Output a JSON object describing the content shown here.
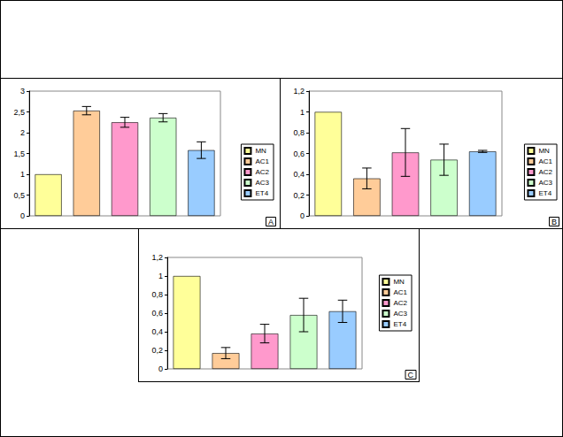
{
  "chart_data": [
    {
      "type": "bar",
      "annotation": "A",
      "categories": [
        "MN",
        "AC1",
        "AC2",
        "AC3",
        "ET4"
      ],
      "values": [
        1,
        2.53,
        2.25,
        2.36,
        1.58
      ],
      "errors": [
        0,
        0.1,
        0.12,
        0.1,
        0.2
      ],
      "colors": [
        "#ffff99",
        "#ffcc99",
        "#ff99cc",
        "#ccffcc",
        "#99ccff"
      ],
      "ylim": [
        0,
        3
      ],
      "yticks": [
        0,
        {
          "value": 0.5,
          "label": "0,5"
        },
        1,
        {
          "value": 1.5,
          "label": "1,5"
        },
        2,
        {
          "value": 2.5,
          "label": "2,5"
        },
        3
      ],
      "grid": false,
      "legend": "right",
      "tick_labels": "y"
    },
    {
      "type": "bar",
      "annotation": "B",
      "categories": [
        "MN",
        "AC1",
        "AC2",
        "AC3",
        "ET4"
      ],
      "values": [
        1,
        0.36,
        0.61,
        0.54,
        0.62
      ],
      "errors": [
        0,
        0.1,
        0.23,
        0.15,
        0.01
      ],
      "colors": [
        "#ffff99",
        "#ffcc99",
        "#ff99cc",
        "#ccffcc",
        "#99ccff"
      ],
      "ylim": [
        0,
        1.2
      ],
      "yticks": [
        0,
        {
          "value": 0.2,
          "label": "0,2"
        },
        {
          "value": 0.4,
          "label": "0,4"
        },
        {
          "value": 0.6,
          "label": "0,6"
        },
        {
          "value": 0.8,
          "label": "0,8"
        },
        1,
        {
          "value": 1.2,
          "label": "1,2"
        }
      ],
      "grid": false,
      "legend": "right",
      "tick_labels": "y"
    },
    {
      "type": "bar",
      "annotation": "C",
      "categories": [
        "MN",
        "AC1",
        "AC2",
        "AC3",
        "ET4"
      ],
      "values": [
        1,
        0.17,
        0.38,
        0.58,
        0.62
      ],
      "errors": [
        0,
        0.06,
        0.1,
        0.18,
        0.12
      ],
      "colors": [
        "#ffff99",
        "#ffcc99",
        "#ff99cc",
        "#ccffcc",
        "#99ccff"
      ],
      "ylim": [
        0,
        1.2
      ],
      "yticks": [
        0,
        {
          "value": 0.2,
          "label": "0,2"
        },
        {
          "value": 0.4,
          "label": "0,4"
        },
        {
          "value": 0.6,
          "label": "0,6"
        },
        {
          "value": 0.8,
          "label": "0,8"
        },
        1,
        {
          "value": 1.2,
          "label": "1,2"
        }
      ],
      "grid": false,
      "legend": "right",
      "tick_labels": "y"
    }
  ]
}
